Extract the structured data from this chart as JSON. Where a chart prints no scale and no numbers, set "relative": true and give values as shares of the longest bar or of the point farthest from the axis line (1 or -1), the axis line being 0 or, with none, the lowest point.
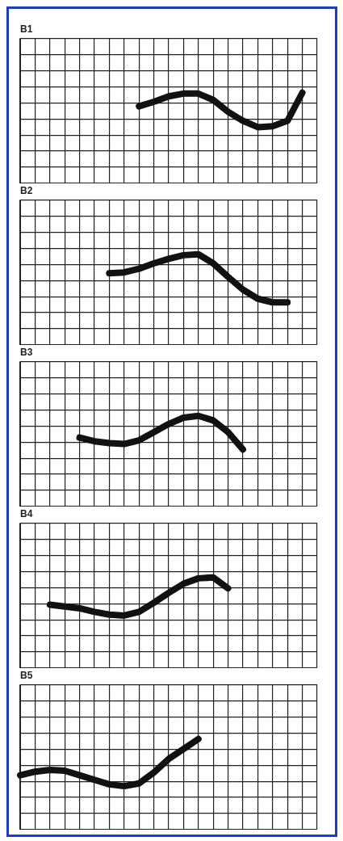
{
  "chart_data": [
    {
      "type": "line",
      "title": "B1",
      "relative": true,
      "grid": true,
      "legend": false,
      "marker": "none",
      "line_style": "solid",
      "categories": [
        null,
        null,
        null,
        null,
        null,
        null,
        null,
        null,
        null,
        null,
        null,
        null,
        null,
        null,
        null,
        null,
        null,
        null,
        null,
        null,
        null
      ],
      "series": [
        {
          "color": "#111111",
          "values": [
            null,
            null,
            null,
            null,
            null,
            null,
            null,
            null,
            0.85,
            0.9,
            0.96,
            0.99,
            0.99,
            0.92,
            0.79,
            0.69,
            0.62,
            0.63,
            0.69,
            1,
            null
          ]
        }
      ]
    },
    {
      "type": "line",
      "title": "B2",
      "relative": true,
      "grid": true,
      "legend": false,
      "marker": "none",
      "line_style": "solid",
      "categories": [
        null,
        null,
        null,
        null,
        null,
        null,
        null,
        null,
        null,
        null,
        null,
        null,
        null,
        null,
        null,
        null,
        null,
        null,
        null,
        null,
        null
      ],
      "series": [
        {
          "color": "#111111",
          "values": [
            null,
            null,
            null,
            null,
            null,
            null,
            0.79,
            0.8,
            0.84,
            0.9,
            0.95,
            0.99,
            1,
            0.9,
            0.75,
            0.61,
            0.51,
            0.47,
            0.47,
            null,
            null
          ]
        }
      ]
    },
    {
      "type": "line",
      "title": "B3",
      "relative": true,
      "grid": true,
      "legend": false,
      "marker": "none",
      "line_style": "solid",
      "categories": [
        null,
        null,
        null,
        null,
        null,
        null,
        null,
        null,
        null,
        null,
        null,
        null,
        null,
        null,
        null,
        null,
        null,
        null,
        null,
        null,
        null
      ],
      "series": [
        {
          "color": "#111111",
          "values": [
            null,
            null,
            null,
            null,
            0.76,
            0.72,
            0.7,
            0.69,
            0.73,
            0.82,
            0.91,
            0.98,
            1,
            0.95,
            0.82,
            0.63,
            null,
            null,
            null,
            null,
            null
          ]
        }
      ]
    },
    {
      "type": "line",
      "title": "B4",
      "relative": true,
      "grid": true,
      "legend": false,
      "marker": "none",
      "line_style": "solid",
      "categories": [
        null,
        null,
        null,
        null,
        null,
        null,
        null,
        null,
        null,
        null,
        null,
        null,
        null,
        null,
        null,
        null,
        null,
        null,
        null,
        null,
        null
      ],
      "series": [
        {
          "color": "#111111",
          "values": [
            null,
            null,
            0.7,
            0.68,
            0.66,
            0.62,
            0.59,
            0.58,
            0.62,
            0.72,
            0.83,
            0.93,
            0.99,
            1,
            0.88,
            null,
            null,
            null,
            null,
            null,
            null
          ]
        }
      ]
    },
    {
      "type": "line",
      "title": "B5",
      "relative": true,
      "grid": true,
      "legend": false,
      "marker": "none",
      "line_style": "solid",
      "categories": [
        null,
        null,
        null,
        null,
        null,
        null,
        null,
        null,
        null,
        null,
        null,
        null,
        null,
        null,
        null,
        null,
        null,
        null,
        null,
        null,
        null
      ],
      "series": [
        {
          "color": "#111111",
          "values": [
            0.6,
            0.64,
            0.66,
            0.65,
            0.6,
            0.55,
            0.5,
            0.48,
            0.51,
            0.63,
            0.78,
            0.89,
            1,
            null,
            null,
            null,
            null,
            null,
            null,
            null,
            null
          ]
        }
      ]
    }
  ]
}
